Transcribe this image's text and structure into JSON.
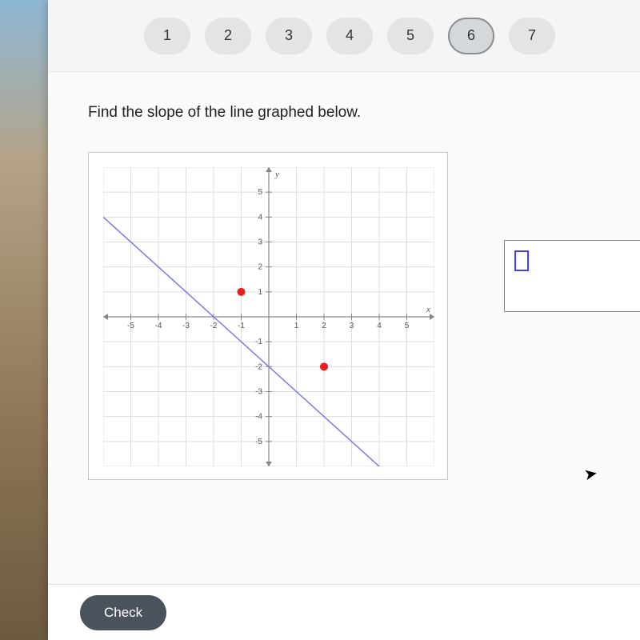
{
  "tabs": {
    "items": [
      "1",
      "2",
      "3",
      "4",
      "5",
      "6",
      "7"
    ],
    "active_index": 5,
    "pill_bg": "#e4e4e4",
    "active_pill_bg": "#d5d8da",
    "active_border": "#8a8e92",
    "font_size": 18
  },
  "prompt": "Find the slope of the line graphed below.",
  "answer": {
    "value": "",
    "placeholder_border_color": "#4040ff"
  },
  "chart": {
    "type": "line",
    "xlim": [
      -6,
      6
    ],
    "ylim": [
      -6,
      6
    ],
    "xtick_step": 1,
    "ytick_step": 1,
    "xticks_labeled": [
      -5,
      -4,
      -3,
      -2,
      -1,
      1,
      2,
      3,
      4,
      5
    ],
    "yticks_labeled": [
      -5,
      -4,
      -3,
      -2,
      -1,
      1,
      2,
      3,
      4,
      5
    ],
    "xlabel": "x",
    "ylabel": "y",
    "background_color": "#ffffff",
    "grid_color": "#dedede",
    "axis_color": "#888888",
    "line_color": "#7a7ae6",
    "line_width": 1.5,
    "line_points": [
      [
        -6,
        4
      ],
      [
        6,
        -8
      ]
    ],
    "markers": [
      {
        "x": -1,
        "y": 1,
        "color": "#e62020",
        "size": 5
      },
      {
        "x": 2,
        "y": -2,
        "color": "#e62020",
        "size": 5
      }
    ],
    "tick_font_size": 10,
    "label_font": "italic 11px serif"
  },
  "footer": {
    "check_label": "Check",
    "check_bg": "#4a535c",
    "check_fg": "#ffffff"
  }
}
